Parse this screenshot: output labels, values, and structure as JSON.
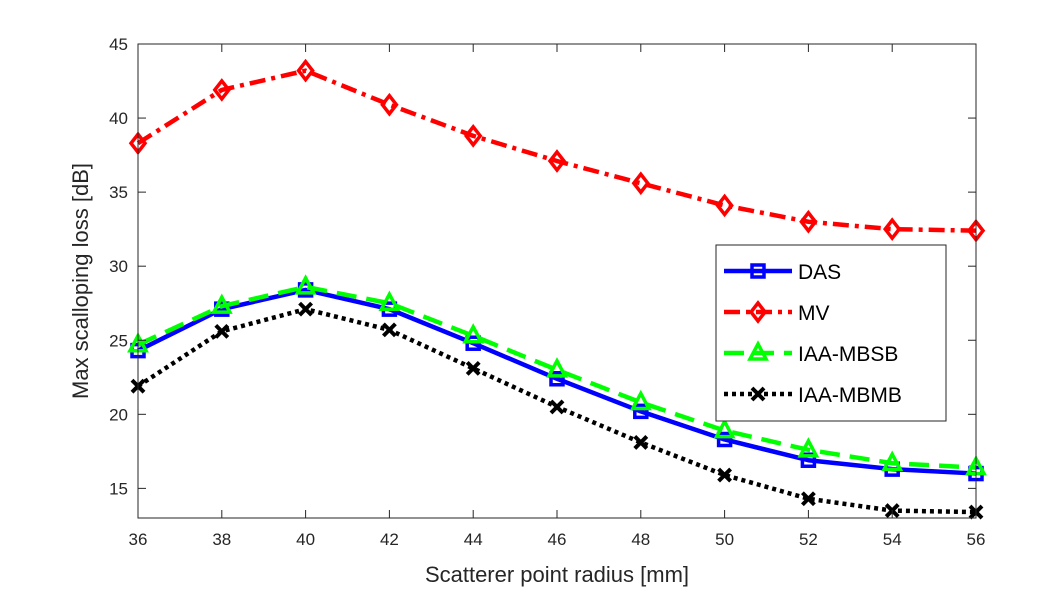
{
  "chart_data": {
    "type": "line",
    "xlabel": "Scatterer point radius [mm]",
    "ylabel": "Max scalloping loss [dB]",
    "xlim": [
      36,
      56
    ],
    "ylim": [
      13.0,
      45
    ],
    "xticks": [
      36,
      38,
      40,
      42,
      44,
      46,
      48,
      50,
      52,
      54,
      56
    ],
    "yticks": [
      15,
      20,
      25,
      30,
      35,
      40,
      45
    ],
    "grid": false,
    "legend_position": "right",
    "x": [
      36,
      38,
      40,
      42,
      44,
      46,
      48,
      50,
      52,
      54,
      56
    ],
    "series": [
      {
        "name": "DAS",
        "color": "#0000ff",
        "line_style": "solid",
        "marker": "square",
        "values": [
          24.3,
          27.1,
          28.4,
          27.1,
          24.8,
          22.4,
          20.2,
          18.3,
          16.9,
          16.3,
          16.0
        ]
      },
      {
        "name": "MV",
        "color": "#ff0000",
        "line_style": "dash-dot",
        "marker": "diamond",
        "values": [
          38.3,
          41.9,
          43.2,
          40.9,
          38.8,
          37.1,
          35.6,
          34.1,
          33.0,
          32.5,
          32.4
        ]
      },
      {
        "name": "IAA-MBSB",
        "color": "#00ff00",
        "line_style": "dashed",
        "marker": "triangle",
        "values": [
          24.7,
          27.3,
          28.6,
          27.5,
          25.3,
          23.0,
          20.8,
          18.9,
          17.6,
          16.7,
          16.4
        ]
      },
      {
        "name": "IAA-MBMB",
        "color": "#000000",
        "line_style": "dotted",
        "marker": "x",
        "values": [
          21.9,
          25.6,
          27.1,
          25.7,
          23.1,
          20.5,
          18.1,
          15.9,
          14.3,
          13.5,
          13.4
        ]
      }
    ]
  }
}
